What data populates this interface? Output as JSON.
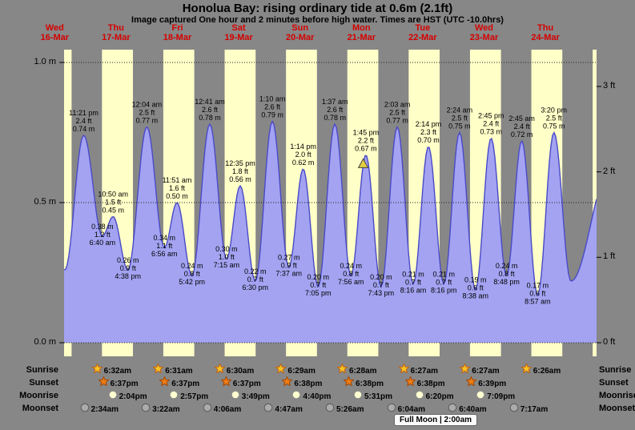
{
  "title": "Honolua Bay: rising ordinary tide at 0.6m (2.1ft)",
  "subtitle": "Image captured One hour and 2 minutes before high water. Times are HST (UTC -10.0hrs)",
  "day_headers": [
    {
      "dow": "Wed",
      "date": "16-Mar"
    },
    {
      "dow": "Thu",
      "date": "17-Mar"
    },
    {
      "dow": "Fri",
      "date": "18-Mar"
    },
    {
      "dow": "Sat",
      "date": "19-Mar"
    },
    {
      "dow": "Sun",
      "date": "20-Mar"
    },
    {
      "dow": "Mon",
      "date": "21-Mar"
    },
    {
      "dow": "Tue",
      "date": "22-Mar"
    },
    {
      "dow": "Wed",
      "date": "23-Mar"
    },
    {
      "dow": "Thu",
      "date": "24-Mar"
    }
  ],
  "chart_data": {
    "type": "area",
    "description": "Tide height curve over 9 days with high/low tide annotations; yellow bands mark daylight hours",
    "ylim_m": [
      0,
      1.05
    ],
    "y_axis_left": {
      "unit": "m",
      "tick_labels": [
        "1.0 m",
        "0.5 m",
        "0.0 m"
      ],
      "tick_values": [
        1.0,
        0.5,
        0.0
      ]
    },
    "y_axis_right": {
      "unit": "ft",
      "tick_labels": [
        "3 ft",
        "2 ft",
        "1 ft",
        "0 ft"
      ],
      "tick_values": [
        3,
        2,
        1,
        0
      ]
    },
    "extremes": [
      {
        "kind": "high",
        "day": 0,
        "time": "11:21 pm",
        "ft": 2.4,
        "m": 0.74
      },
      {
        "kind": "low",
        "day": 1,
        "time": "6:40 am",
        "ft": 1.2,
        "m": 0.38
      },
      {
        "kind": "high",
        "day": 1,
        "time": "10:50 am",
        "ft": 1.5,
        "m": 0.45
      },
      {
        "kind": "low",
        "day": 1,
        "time": "4:38 pm",
        "ft": 0.9,
        "m": 0.26
      },
      {
        "kind": "high",
        "day": 2,
        "time": "12:04 am",
        "ft": 2.5,
        "m": 0.77
      },
      {
        "kind": "low",
        "day": 2,
        "time": "6:56 am",
        "ft": 1.1,
        "m": 0.34
      },
      {
        "kind": "high",
        "day": 2,
        "time": "11:51 am",
        "ft": 1.6,
        "m": 0.5
      },
      {
        "kind": "low",
        "day": 2,
        "time": "5:42 pm",
        "ft": 0.8,
        "m": 0.24
      },
      {
        "kind": "high",
        "day": 3,
        "time": "12:41 am",
        "ft": 2.6,
        "m": 0.78
      },
      {
        "kind": "low",
        "day": 3,
        "time": "7:15 am",
        "ft": 1.0,
        "m": 0.3
      },
      {
        "kind": "high",
        "day": 3,
        "time": "12:35 pm",
        "ft": 1.8,
        "m": 0.56
      },
      {
        "kind": "low",
        "day": 3,
        "time": "6:30 pm",
        "ft": 0.7,
        "m": 0.22
      },
      {
        "kind": "high",
        "day": 4,
        "time": "1:10 am",
        "ft": 2.6,
        "m": 0.79
      },
      {
        "kind": "low",
        "day": 4,
        "time": "7:37 am",
        "ft": 0.9,
        "m": 0.27
      },
      {
        "kind": "high",
        "day": 4,
        "time": "1:14 pm",
        "ft": 2.0,
        "m": 0.62
      },
      {
        "kind": "low",
        "day": 4,
        "time": "7:05 pm",
        "ft": 0.7,
        "m": 0.2
      },
      {
        "kind": "high",
        "day": 5,
        "time": "1:37 am",
        "ft": 2.6,
        "m": 0.78
      },
      {
        "kind": "low",
        "day": 5,
        "time": "7:56 am",
        "ft": 0.8,
        "m": 0.24
      },
      {
        "kind": "high",
        "day": 5,
        "time": "1:45 pm",
        "ft": 2.2,
        "m": 0.67
      },
      {
        "kind": "low",
        "day": 5,
        "time": "7:43 pm",
        "ft": 0.7,
        "m": 0.2
      },
      {
        "kind": "high",
        "day": 6,
        "time": "2:03 am",
        "ft": 2.5,
        "m": 0.77
      },
      {
        "kind": "low",
        "day": 6,
        "time": "8:16 am",
        "ft": 0.7,
        "m": 0.21
      },
      {
        "kind": "high",
        "day": 6,
        "time": "2:14 pm",
        "ft": 2.3,
        "m": 0.7
      },
      {
        "kind": "low",
        "day": 6,
        "time": "8:16 pm",
        "ft": 0.7,
        "m": 0.21
      },
      {
        "kind": "high",
        "day": 7,
        "time": "2:24 am",
        "ft": 2.5,
        "m": 0.75
      },
      {
        "kind": "low",
        "day": 7,
        "time": "8:38 am",
        "ft": 0.6,
        "m": 0.19
      },
      {
        "kind": "high",
        "day": 7,
        "time": "2:45 pm",
        "ft": 2.4,
        "m": 0.73
      },
      {
        "kind": "low",
        "day": 7,
        "time": "8:48 pm",
        "ft": 0.8,
        "m": 0.24
      },
      {
        "kind": "high",
        "day": 8,
        "time": "2:45 am",
        "ft": 2.4,
        "m": 0.72
      },
      {
        "kind": "low",
        "day": 8,
        "time": "8:57 am",
        "ft": 0.6,
        "m": 0.17
      },
      {
        "kind": "high",
        "day": 8,
        "time": "3:20 pm",
        "ft": 2.5,
        "m": 0.75
      }
    ],
    "current_marker": {
      "shape": "triangle-up",
      "at_high_time": "1:45 pm",
      "minutes_before_high": 62
    }
  },
  "astro": {
    "rows": [
      {
        "label": "Sunrise",
        "icon": "sunrise-star-icon",
        "times": [
          "6:32am",
          "6:31am",
          "6:30am",
          "6:29am",
          "6:28am",
          "6:27am",
          "6:27am",
          "6:26am"
        ]
      },
      {
        "label": "Sunset",
        "icon": "sunset-star-icon",
        "times": [
          "6:37pm",
          "6:37pm",
          "6:37pm",
          "6:38pm",
          "6:38pm",
          "6:38pm",
          "6:39pm"
        ]
      },
      {
        "label": "Moonrise",
        "icon": "moonrise-icon",
        "times": [
          "2:04pm",
          "2:57pm",
          "3:49pm",
          "4:40pm",
          "5:31pm",
          "6:20pm",
          "7:09pm"
        ]
      },
      {
        "label": "Moonset",
        "icon": "moonset-icon",
        "times": [
          "2:34am",
          "3:22am",
          "4:06am",
          "4:47am",
          "5:26am",
          "6:04am",
          "6:40am",
          "7:17am"
        ]
      }
    ],
    "full_moon": "Full Moon | 2:00am"
  },
  "colors": {
    "background": "#878787",
    "daylight_band": "#ffffc8",
    "night_band": "#878787",
    "tide_fill": "#a3a3f2",
    "tide_stroke": "#4a4ac8",
    "header_red": "#d60000",
    "grid": "#222222",
    "marker_fill": "#e3cf3e",
    "marker_stroke": "#444444",
    "sunrise_star": "#f7c325",
    "sunrise_star_stroke": "#c06010",
    "sunset_star": "#ee7d14",
    "sunset_star_stroke": "#a04808",
    "moonrise_fill": "#ffffd2",
    "moonrise_stroke": "#8a8a8a",
    "moonset_fill": "#ababab",
    "moonset_stroke": "#5a5a5a"
  }
}
